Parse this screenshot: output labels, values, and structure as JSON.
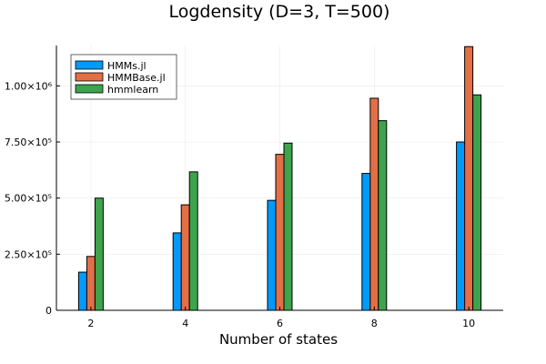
{
  "chart_data": {
    "type": "bar",
    "title": "Logdensity (D=3, T=500)",
    "xlabel": "Number of states",
    "ylabel": "",
    "categories": [
      "2",
      "4",
      "6",
      "8",
      "10"
    ],
    "x": [
      2,
      4,
      6,
      8,
      10
    ],
    "series": [
      {
        "name": "HMMs.jl",
        "color": "#009AFA",
        "values": [
          170000,
          345000,
          490000,
          610000,
          750000
        ]
      },
      {
        "name": "HMMBase.jl",
        "color": "#E26F46",
        "values": [
          240000,
          470000,
          695000,
          945000,
          1175000
        ]
      },
      {
        "name": "hmmlearn",
        "color": "#3DA44D",
        "values": [
          500000,
          617000,
          745000,
          845000,
          960000
        ]
      }
    ],
    "ylim": [
      0,
      1180000
    ],
    "xlim": [
      1.27,
      10.73
    ],
    "yticks": [
      {
        "value": 0,
        "label": "0"
      },
      {
        "value": 250000,
        "label": "2.50×10⁵"
      },
      {
        "value": 500000,
        "label": "5.00×10⁵"
      },
      {
        "value": 750000,
        "label": "7.50×10⁵"
      },
      {
        "value": 1000000,
        "label": "1.00×10⁶"
      }
    ],
    "grid": true,
    "legend_position": "top-left"
  }
}
